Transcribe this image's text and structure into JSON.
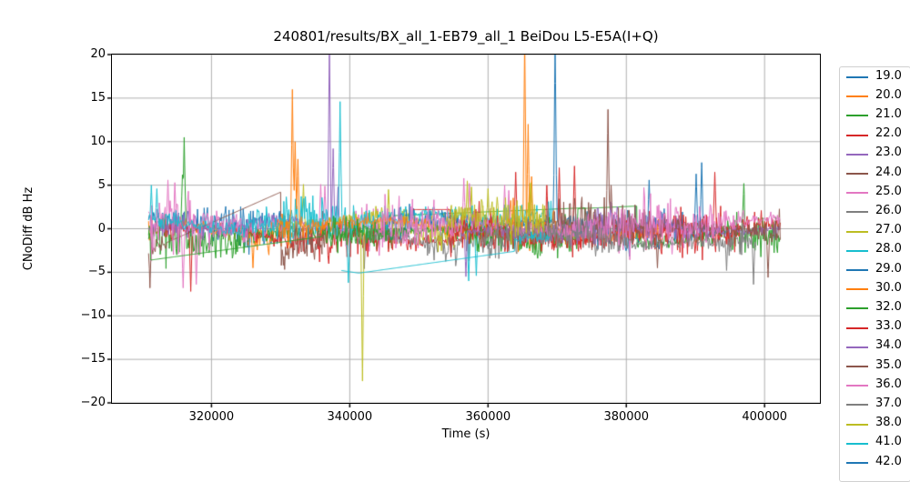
{
  "figure": {
    "background": "#ffffff"
  },
  "colors": {
    "grid": "#b0b0b0",
    "spine": "#000000",
    "tick": "#000000",
    "text": "#000000",
    "legend_border": "#d0d0d0",
    "legend_background": "#ffffff"
  },
  "chart_data": {
    "type": "line",
    "title": "240801/results/BX_all_1-EB79_all_1 BeiDou L5-E5A(I+Q)",
    "xlabel": "Time (s)",
    "ylabel": "CNoDiff dB Hz",
    "axes": {
      "xlim": [
        305600,
        408000
      ],
      "ylim": [
        -20,
        20
      ],
      "grid": true,
      "legend_position": "right-outside",
      "x_ticks": [
        {
          "v": 320000,
          "label": "320000"
        },
        {
          "v": 340000,
          "label": "340000"
        },
        {
          "v": 360000,
          "label": "360000"
        },
        {
          "v": 380000,
          "label": "380000"
        },
        {
          "v": 400000,
          "label": "400000"
        }
      ],
      "y_ticks": [
        {
          "v": 20,
          "label": "20"
        },
        {
          "v": 15,
          "label": "15"
        },
        {
          "v": 10,
          "label": "10"
        },
        {
          "v": 5,
          "label": "5"
        },
        {
          "v": 0,
          "label": "0"
        },
        {
          "v": -5,
          "label": "−5"
        },
        {
          "v": -10,
          "label": "−10"
        },
        {
          "v": -15,
          "label": "−15"
        },
        {
          "v": -20,
          "label": "−20"
        }
      ]
    },
    "series_description": "Noisy CNo difference traces per PRN, ~0 dB mean, amplitude ~±3 dB, with sparse-segment straight interpolation lines and occasional large spikes (values read from plot).",
    "series": [
      {
        "name": "19.0",
        "color": "#1f77b4",
        "start": 310900,
        "end": 331500,
        "base": 0.6,
        "amp": 1.7,
        "seed": 11,
        "spikes": [],
        "gaps": [],
        "bursts": [
          [
            310900,
            318000,
            1.25
          ]
        ]
      },
      {
        "name": "20.0",
        "color": "#ff7f0e",
        "start": 310900,
        "end": 332800,
        "base": -0.3,
        "amp": 1.9,
        "seed": 22,
        "spikes": [
          [
            326000,
            -4.5
          ]
        ],
        "gaps": [],
        "bursts": []
      },
      {
        "name": "21.0",
        "color": "#2ca02c",
        "start": 310900,
        "end": 374500,
        "base": -0.9,
        "amp": 1.7,
        "seed": 33,
        "spikes": [
          [
            316050,
            10.5
          ],
          [
            315800,
            6.2
          ]
        ],
        "gaps": [
          [
            346300,
            1.5,
            374000,
            2.4
          ]
        ],
        "bursts": []
      },
      {
        "name": "22.0",
        "color": "#d62728",
        "start": 313200,
        "end": 393800,
        "base": -0.7,
        "amp": 1.6,
        "seed": 44,
        "spikes": [
          [
            317000,
            -7.2
          ],
          [
            370300,
            7.0
          ],
          [
            372500,
            7.2
          ],
          [
            392800,
            6.5
          ]
        ],
        "gaps": [],
        "bursts": [
          [
            318500,
            331000,
            0.7
          ]
        ]
      },
      {
        "name": "23.0",
        "color": "#9467bd",
        "start": 310900,
        "end": 340500,
        "base": 0.1,
        "amp": 1.4,
        "seed": 55,
        "spikes": [
          [
            337060,
            22
          ],
          [
            337600,
            9.2
          ],
          [
            338300,
            4.8
          ]
        ],
        "gaps": [],
        "bursts": [
          [
            318000,
            335500,
            0.6
          ]
        ]
      },
      {
        "name": "24.0",
        "color": "#8c564b",
        "start": 310900,
        "end": 336500,
        "base": -1.2,
        "amp": 1.9,
        "seed": 66,
        "spikes": [
          [
            311100,
            -6.8
          ],
          [
            330400,
            -4.2
          ]
        ],
        "gaps": [
          [
            313500,
            -1.6,
            330000,
            4.2
          ]
        ],
        "bursts": []
      },
      {
        "name": "25.0",
        "color": "#e377c2",
        "start": 310900,
        "end": 345500,
        "base": 0.6,
        "amp": 2.0,
        "seed": 77,
        "spikes": [
          [
            313700,
            5.6
          ],
          [
            314700,
            5.3
          ],
          [
            315900,
            -6.8
          ],
          [
            317800,
            -6.4
          ],
          [
            335800,
            5.1
          ],
          [
            336400,
            4.9
          ]
        ],
        "gaps": [],
        "bursts": [
          [
            310900,
            318500,
            1.3
          ]
        ]
      },
      {
        "name": "26.0",
        "color": "#7f7f7f",
        "start": 340800,
        "end": 370500,
        "base": -0.9,
        "amp": 1.5,
        "seed": 88,
        "spikes": [
          [
            342100,
            -4.6
          ]
        ],
        "gaps": [],
        "bursts": []
      },
      {
        "name": "27.0",
        "color": "#bcbd22",
        "start": 329500,
        "end": 372000,
        "base": 0.4,
        "amp": 1.6,
        "seed": 99,
        "spikes": [
          [
            333300,
            5.1
          ],
          [
            341840,
            -17.5
          ],
          [
            345600,
            4.5
          ],
          [
            357600,
            4.8
          ],
          [
            366000,
            5.2
          ]
        ],
        "gaps": [],
        "bursts": []
      },
      {
        "name": "28.0",
        "color": "#17becf",
        "start": 310900,
        "end": 369500,
        "base": 0.9,
        "amp": 1.8,
        "seed": 110,
        "spikes": [
          [
            311300,
            5.0
          ],
          [
            312100,
            4.6
          ],
          [
            338600,
            14.6
          ],
          [
            339800,
            -6.2
          ],
          [
            357200,
            -6.0
          ],
          [
            358300,
            -5.4
          ]
        ],
        "gaps": [],
        "bursts": [
          [
            360000,
            369500,
            0.6
          ]
        ]
      },
      {
        "name": "29.0",
        "color": "#1f77b4",
        "start": 344800,
        "end": 394500,
        "base": 0.2,
        "amp": 1.6,
        "seed": 121,
        "spikes": [
          [
            369700,
            22
          ],
          [
            383300,
            5.6
          ],
          [
            390100,
            6.3
          ],
          [
            390900,
            7.6
          ]
        ],
        "gaps": [],
        "bursts": [
          [
            349500,
            368500,
            0.55
          ],
          [
            380000,
            394000,
            1.2
          ]
        ]
      },
      {
        "name": "30.0",
        "color": "#ff7f0e",
        "start": 329800,
        "end": 385000,
        "base": 0.1,
        "amp": 1.8,
        "seed": 132,
        "spikes": [
          [
            331700,
            16
          ],
          [
            332100,
            10
          ],
          [
            332500,
            8
          ],
          [
            365300,
            22
          ],
          [
            365800,
            12
          ],
          [
            365900,
            -5.8
          ],
          [
            366300,
            6
          ]
        ],
        "gaps": [],
        "bursts": [
          [
            343500,
            362800,
            0.45
          ],
          [
            363000,
            372000,
            1.25
          ]
        ]
      },
      {
        "name": "32.0",
        "color": "#2ca02c",
        "start": 310900,
        "end": 402300,
        "base": -0.8,
        "amp": 1.7,
        "seed": 143,
        "spikes": [
          [
            397000,
            5.2
          ]
        ],
        "gaps": [
          [
            311200,
            -3.6,
            336000,
            -0.9
          ],
          [
            373000,
            2.3,
            381500,
            2.6
          ]
        ],
        "bursts": []
      },
      {
        "name": "33.0",
        "color": "#d62728",
        "start": 349000,
        "end": 402300,
        "base": -0.5,
        "amp": 1.8,
        "seed": 154,
        "spikes": [
          [
            364000,
            6.5
          ],
          [
            368500,
            5.0
          ]
        ],
        "gaps": [
          [
            349000,
            2.2,
            354500,
            2.2
          ]
        ],
        "bursts": []
      },
      {
        "name": "34.0",
        "color": "#9467bd",
        "start": 356000,
        "end": 402300,
        "base": -0.3,
        "amp": 1.4,
        "seed": 165,
        "spikes": [
          [
            356800,
            -5.5
          ]
        ],
        "gaps": [],
        "bursts": []
      },
      {
        "name": "35.0",
        "color": "#8c564b",
        "start": 369500,
        "end": 402300,
        "base": 0.4,
        "amp": 1.8,
        "seed": 176,
        "spikes": [
          [
            377350,
            13.7
          ],
          [
            377800,
            5.0
          ],
          [
            384500,
            -4.5
          ],
          [
            400500,
            -5.6
          ]
        ],
        "gaps": [],
        "bursts": []
      },
      {
        "name": "36.0",
        "color": "#e377c2",
        "start": 344500,
        "end": 402300,
        "base": 0.4,
        "amp": 1.9,
        "seed": 187,
        "spikes": [
          [
            356500,
            5.8
          ],
          [
            357300,
            5.2
          ],
          [
            362400,
            5.0
          ],
          [
            363000,
            4.4
          ]
        ],
        "gaps": [],
        "bursts": [
          [
            378000,
            384500,
            1.25
          ]
        ]
      },
      {
        "name": "37.0",
        "color": "#7f7f7f",
        "start": 359000,
        "end": 398800,
        "base": -1.2,
        "amp": 1.4,
        "seed": 198,
        "spikes": [
          [
            394500,
            -4.8
          ],
          [
            398400,
            -6.4
          ]
        ],
        "gaps": [],
        "bursts": [
          [
            374000,
            378500,
            1.4
          ]
        ]
      },
      {
        "name": "38.0",
        "color": "#bcbd22",
        "start": 354000,
        "end": 368500,
        "base": 1.2,
        "amp": 1.7,
        "seed": 209,
        "spikes": [
          [
            357000,
            5.5
          ],
          [
            360000,
            4.6
          ],
          [
            366200,
            5.3
          ]
        ],
        "gaps": [],
        "bursts": []
      },
      {
        "name": "41.0",
        "color": "#17becf",
        "start": 338800,
        "end": 369000,
        "base": -1.8,
        "amp": 1.2,
        "seed": 220,
        "spikes": [],
        "gaps": [
          [
            338800,
            -4.8,
            341300,
            -5.1
          ],
          [
            341300,
            -5.1,
            363800,
            -2.6
          ]
        ],
        "bursts": []
      },
      {
        "name": "42.0",
        "color": "#1f77b4",
        "start": 0,
        "end": 0,
        "base": 0,
        "amp": 0,
        "seed": 231,
        "spikes": [],
        "gaps": [],
        "bursts": []
      }
    ]
  }
}
